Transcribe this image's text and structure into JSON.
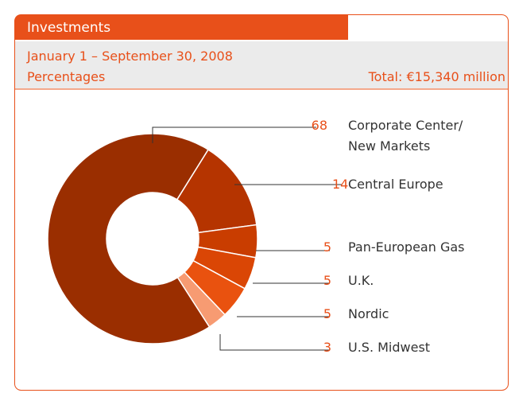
{
  "chart_data": {
    "type": "donut",
    "title": "Investments",
    "subtitle": "January 1 – September 30, 2008",
    "unit_label": "Percentages",
    "total_label": "Total: €15,340 million",
    "categories": [
      "Central Europe",
      "Pan-European Gas",
      "U.K.",
      "Nordic",
      "U.S. Midwest",
      "Corporate Center/ New Markets"
    ],
    "values": [
      14,
      5,
      5,
      5,
      3,
      68
    ],
    "colors": [
      "#b53400",
      "#c93d00",
      "#da4605",
      "#e9520f",
      "#f79b72",
      "#9a2e00"
    ]
  }
}
